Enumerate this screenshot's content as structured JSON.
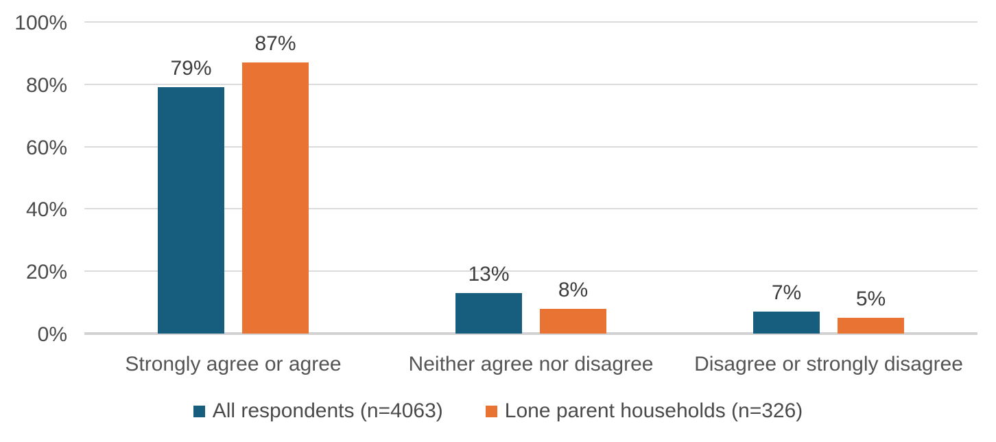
{
  "chart_data": {
    "type": "bar",
    "title": "",
    "xlabel": "",
    "ylabel": "",
    "categories": [
      "Strongly agree or agree",
      "Neither agree nor disagree",
      "Disagree or strongly disagree"
    ],
    "series": [
      {
        "name": "All respondents (n=4063)",
        "color": "#175e7e",
        "values": [
          79,
          13,
          7
        ],
        "labels": [
          "79%",
          "13%",
          "7%"
        ]
      },
      {
        "name": "Lone parent households (n=326)",
        "color": "#e97332",
        "values": [
          87,
          8,
          5
        ],
        "labels": [
          "87%",
          "8%",
          "5%"
        ]
      }
    ],
    "y_ticks": [
      "0%",
      "20%",
      "40%",
      "60%",
      "80%",
      "100%"
    ],
    "ylim": [
      0,
      100
    ],
    "grid": true,
    "legend_position": "bottom"
  },
  "colors": {
    "series_all_respondents": "#175e7e",
    "series_lone_parent_households": "#e97332",
    "gridline": "#dbdbdb",
    "axis_line": "#d2d2d2",
    "text": "#404040",
    "background": "#ffffff"
  }
}
